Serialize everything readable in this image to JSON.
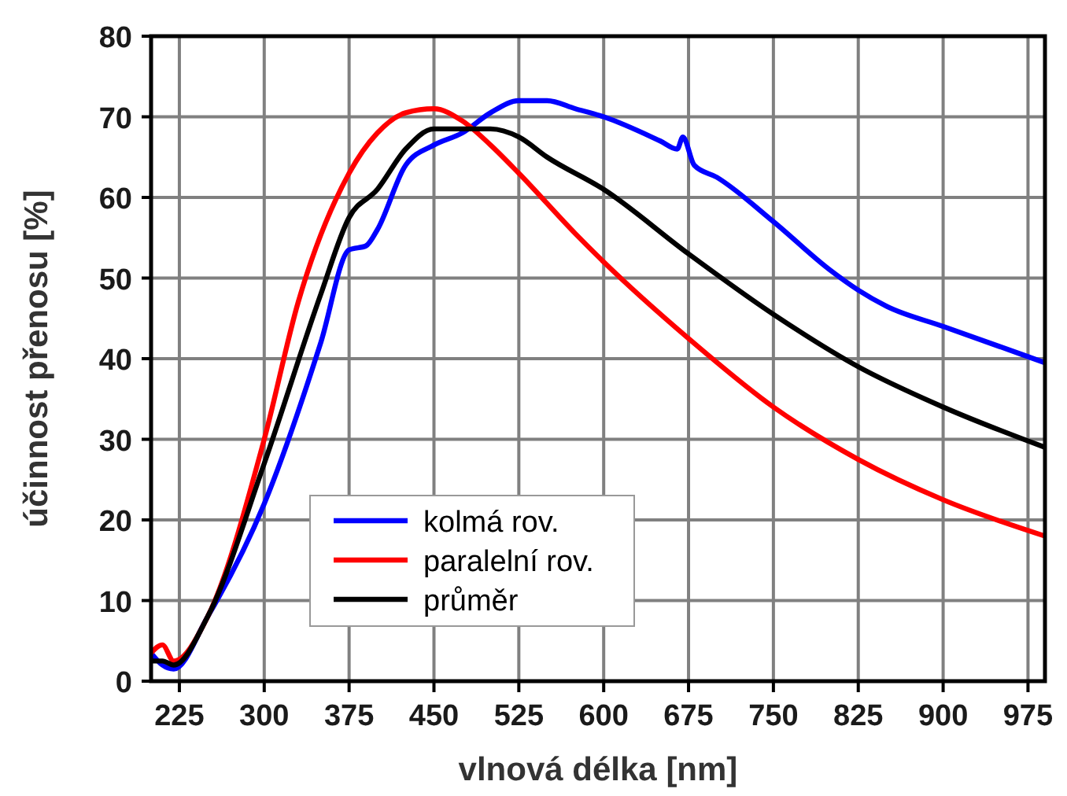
{
  "chart_data": {
    "type": "line",
    "xlabel": "vlnová délka [nm]",
    "ylabel": "účinnost přenosu [%]",
    "xlim": [
      200,
      990
    ],
    "xticks": [
      225,
      300,
      375,
      450,
      525,
      600,
      675,
      750,
      825,
      900,
      975
    ],
    "ylim": [
      0,
      80
    ],
    "yticks": [
      0,
      10,
      20,
      30,
      40,
      50,
      60,
      70,
      80
    ],
    "grid": true,
    "legend": "bottom",
    "marker": "none",
    "line_style": "solid",
    "series": [
      {
        "name": "kolmá rov.",
        "color": "#0000ff",
        "x": [
          200,
          210,
          220,
          250,
          300,
          350,
          375,
          390,
          400,
          425,
          450,
          475,
          500,
          525,
          550,
          575,
          600,
          650,
          665,
          670,
          680,
          700,
          750,
          800,
          825,
          850,
          900,
          950,
          990
        ],
        "values": [
          3.5,
          2,
          1.5,
          8,
          22,
          42,
          53.5,
          54,
          56,
          64,
          66.5,
          68,
          70.5,
          72,
          72,
          71,
          70,
          67,
          66,
          67.5,
          64,
          62.5,
          57,
          51,
          48.5,
          46.5,
          44,
          41.5,
          39.5
        ]
      },
      {
        "name": "paralelní rov.",
        "color": "#ff0000",
        "x": [
          200,
          210,
          220,
          250,
          300,
          330,
          375,
          400,
          425,
          450,
          475,
          500,
          525,
          575,
          600,
          675,
          750,
          825,
          900,
          990
        ],
        "values": [
          3.5,
          4.5,
          2.5,
          8,
          30,
          47,
          63,
          68,
          70.5,
          71,
          69.5,
          66.5,
          63,
          55.5,
          52,
          42.5,
          34,
          27.5,
          22.5,
          18
        ]
      },
      {
        "name": "průměr",
        "color": "#000000",
        "x": [
          200,
          210,
          220,
          250,
          300,
          350,
          375,
          400,
          425,
          450,
          475,
          500,
          525,
          550,
          600,
          675,
          750,
          825,
          900,
          990
        ],
        "values": [
          2.5,
          2.5,
          2,
          8,
          27,
          48,
          57.5,
          61,
          66,
          68.5,
          68.5,
          68.5,
          67.5,
          65,
          61,
          53,
          45.5,
          39,
          34,
          29
        ]
      }
    ]
  }
}
